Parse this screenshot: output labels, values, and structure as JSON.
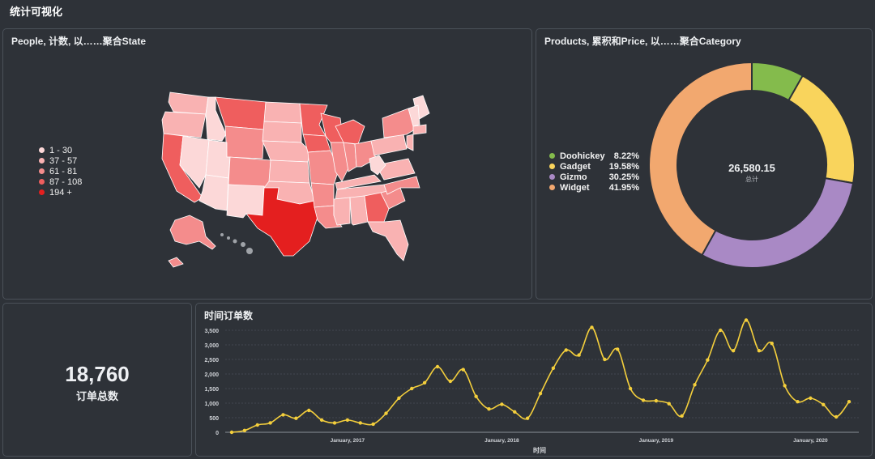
{
  "page": {
    "title": "统计可视化"
  },
  "map_card": {
    "title": "People, 计数, 以……聚合State",
    "legend": [
      {
        "label": "1 - 30",
        "color": "#fcd8d8"
      },
      {
        "label": "37 - 57",
        "color": "#f9b2b2"
      },
      {
        "label": "61 - 81",
        "color": "#f48c8c"
      },
      {
        "label": "87 - 108",
        "color": "#ef5e5e"
      },
      {
        "label": "194 +",
        "color": "#e41f1f"
      }
    ]
  },
  "donut_card": {
    "title": "Products, 累积和Price, 以……聚合Category",
    "center_value": "26,580.15",
    "center_label": "总计",
    "chart_data": {
      "type": "pie",
      "total": 26580.15,
      "slices": [
        {
          "name": "Doohickey",
          "percent": 8.22,
          "pct_label": "8.22%",
          "color": "#84bb4c"
        },
        {
          "name": "Gadget",
          "percent": 19.58,
          "pct_label": "19.58%",
          "color": "#f9d45c"
        },
        {
          "name": "Gizmo",
          "percent": 30.25,
          "pct_label": "30.25%",
          "color": "#a989c5"
        },
        {
          "name": "Widget",
          "percent": 41.95,
          "pct_label": "41.95%",
          "color": "#f2a86f"
        }
      ]
    }
  },
  "kpi_card": {
    "value": "18,760",
    "label": "订单总数"
  },
  "line_card": {
    "title": "时间订单数",
    "chart_data": {
      "type": "line",
      "xlabel": "时间",
      "ylabel": "",
      "ylim": [
        0,
        3750
      ],
      "yticks": [
        "0",
        "500",
        "1,000",
        "1,500",
        "2,000",
        "2,500",
        "3,000",
        "3,500"
      ],
      "xticks": [
        {
          "label": "January, 2017",
          "index": 9
        },
        {
          "label": "January, 2018",
          "index": 21
        },
        {
          "label": "January, 2019",
          "index": 33
        },
        {
          "label": "January, 2020",
          "index": 45
        }
      ],
      "color": "#f4cf3c",
      "values": [
        0,
        60,
        250,
        320,
        600,
        480,
        750,
        420,
        320,
        420,
        320,
        280,
        650,
        1170,
        1500,
        1700,
        2250,
        1750,
        2150,
        1230,
        800,
        960,
        700,
        480,
        1330,
        2200,
        2820,
        2650,
        3600,
        2500,
        2850,
        1500,
        1100,
        1080,
        980,
        560,
        1630,
        2480,
        3500,
        2800,
        3850,
        2800,
        3050,
        1600,
        1050,
        1170,
        950,
        530,
        1050
      ]
    }
  }
}
